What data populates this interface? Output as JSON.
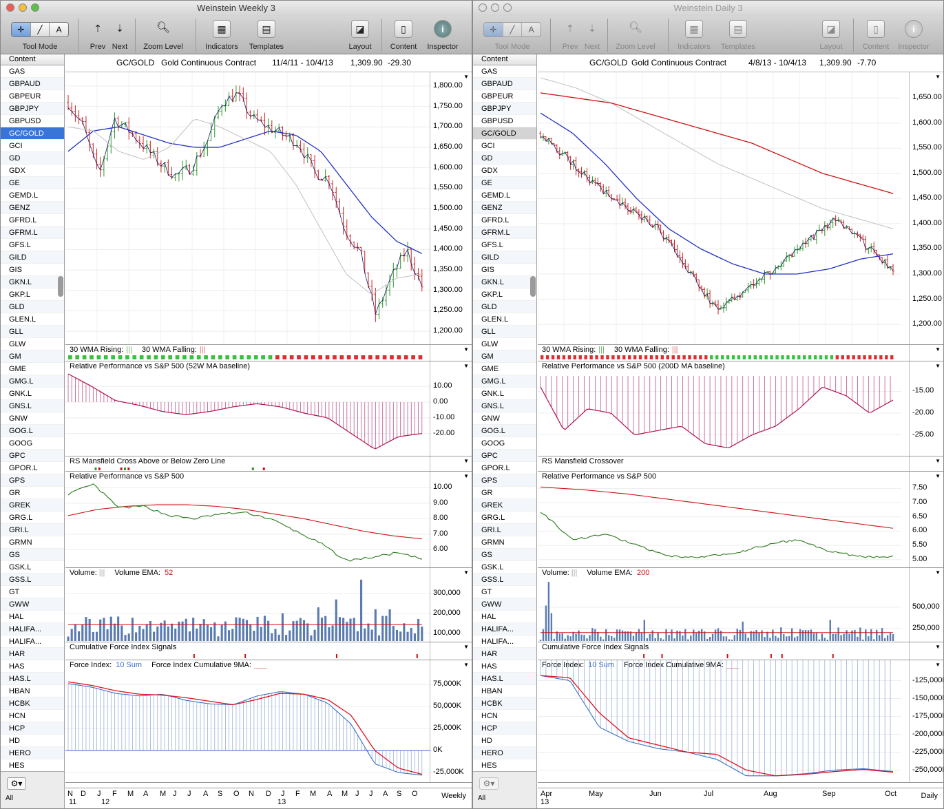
{
  "left": {
    "title": "Weinstein Weekly 3",
    "toolbar": {
      "tool_mode": "Tool Mode",
      "prev": "Prev",
      "next": "Next",
      "zoom": "Zoom Level",
      "indicators": "Indicators",
      "templates": "Templates",
      "layout": "Layout",
      "content": "Content",
      "inspector": "Inspector"
    },
    "sidebar": {
      "header": "Content",
      "selected": "GC/GOLD",
      "items": [
        "GAS",
        "GBPAUD",
        "GBPEUR",
        "GBPJPY",
        "GBPUSD",
        "GC/GOLD",
        "GCI",
        "GD",
        "GDX",
        "GE",
        "GEMD.L",
        "GENZ",
        "GFRD.L",
        "GFRM.L",
        "GFS.L",
        "GILD",
        "GIS",
        "GKN.L",
        "GKP.L",
        "GLD",
        "GLEN.L",
        "GLL",
        "GLW",
        "GM",
        "GME",
        "GMG.L",
        "GNK.L",
        "GNS.L",
        "GNW",
        "GOG.L",
        "GOOG",
        "GPC",
        "GPOR.L",
        "GPS",
        "GR",
        "GREK",
        "GRG.L",
        "GRI.L",
        "GRMN",
        "GS",
        "GSK.L",
        "GSS.L",
        "GT",
        "GWW",
        "HAL",
        "HALIFA...",
        "HALIFA...",
        "HAR",
        "HAS",
        "HAS.L",
        "HBAN",
        "HCBK",
        "HCN",
        "HCP",
        "HD",
        "HERO",
        "HES"
      ],
      "all": "All"
    },
    "header": {
      "symbol": "GC/GOLD",
      "name": "Gold Continuous Contract",
      "range": "11/4/11 - 10/4/13",
      "last": "1,309.90",
      "change": "-29.30"
    },
    "panels": {
      "wma": {
        "rising": "30 WMA Rising:",
        "falling": "30 WMA Falling:"
      },
      "relperf_ma": {
        "title": "Relative Performance vs S&P 500 (52W MA baseline)"
      },
      "rs_cross": {
        "title": "RS Mansfield Cross Above or Below Zero Line"
      },
      "relperf": {
        "title": "Relative Performance vs S&P 500"
      },
      "volume": {
        "title": "Volume:",
        "ema": "Volume EMA:",
        "ema_value": "52"
      },
      "cfi": {
        "title": "Cumulative Force Index Signals"
      },
      "force": {
        "title": "Force Index:",
        "sum": "10 Sum",
        "cum": "Force Index Cumulative 9MA:"
      }
    },
    "y_price": [
      "1,800.00",
      "1,750.00",
      "1,700.00",
      "1,650.00",
      "1,600.00",
      "1,550.00",
      "1,500.00",
      "1,450.00",
      "1,400.00",
      "1,350.00",
      "1,300.00",
      "1,250.00",
      "1,200.00"
    ],
    "y_relma": [
      "10.00",
      "0.00",
      "-10.00",
      "-20.00"
    ],
    "y_rel": [
      "10.00",
      "9.00",
      "8.00",
      "7.00",
      "6.00"
    ],
    "y_vol": [
      "300,000",
      "200,000",
      "100,000"
    ],
    "y_force": [
      "75,000K",
      "50,000K",
      "25,000K",
      "0K",
      "-25,000K"
    ],
    "x_months": [
      "N",
      "D",
      "J",
      "F",
      "M",
      "A",
      "M",
      "J",
      "J",
      "A",
      "S",
      "O",
      "N",
      "D",
      "J",
      "F",
      "M",
      "A",
      "M",
      "J",
      "J",
      "A",
      "S",
      "O"
    ],
    "x_years": [
      "11",
      "12",
      "13"
    ],
    "period": "Weekly"
  },
  "right": {
    "title": "Weinstein Daily 3",
    "toolbar": {
      "tool_mode": "Tool Mode",
      "prev": "Prev",
      "next": "Next",
      "zoom": "Zoom Level",
      "indicators": "Indicators",
      "templates": "Templates",
      "layout": "Layout",
      "content": "Content",
      "inspector": "Inspector"
    },
    "sidebar": {
      "header": "Content",
      "selected": "GC/GOLD",
      "items": [
        "GAS",
        "GBPAUD",
        "GBPEUR",
        "GBPJPY",
        "GBPUSD",
        "GC/GOLD",
        "GCI",
        "GD",
        "GDX",
        "GE",
        "GEMD.L",
        "GENZ",
        "GFRD.L",
        "GFRM.L",
        "GFS.L",
        "GILD",
        "GIS",
        "GKN.L",
        "GKP.L",
        "GLD",
        "GLEN.L",
        "GLL",
        "GLW",
        "GM",
        "GME",
        "GMG.L",
        "GNK.L",
        "GNS.L",
        "GNW",
        "GOG.L",
        "GOOG",
        "GPC",
        "GPOR.L",
        "GPS",
        "GR",
        "GREK",
        "GRG.L",
        "GRI.L",
        "GRMN",
        "GS",
        "GSK.L",
        "GSS.L",
        "GT",
        "GWW",
        "HAL",
        "HALIFA...",
        "HALIFA...",
        "HAR",
        "HAS",
        "HAS.L",
        "HBAN",
        "HCBK",
        "HCN",
        "HCP",
        "HD",
        "HERO",
        "HES"
      ],
      "all": "All"
    },
    "header": {
      "symbol": "GC/GOLD",
      "name": "Gold Continuous Contract",
      "range": "4/8/13 - 10/4/13",
      "last": "1,309.90",
      "change": "-7.70"
    },
    "panels": {
      "wma": {
        "rising": "30 WMA Rising:",
        "falling": "30 WMA Falling:"
      },
      "relperf_ma": {
        "title": "Relative Performance vs S&P 500 (200D MA baseline)"
      },
      "rs_cross": {
        "title": "RS Mansfield Crossover"
      },
      "relperf": {
        "title": "Relative Performance vs S&P 500"
      },
      "volume": {
        "title": "Volume:",
        "ema": "Volume EMA:",
        "ema_value": "200"
      },
      "cfi": {
        "title": "Cumulative Force Index Signals"
      },
      "force": {
        "title": "Force Index:",
        "sum": "10 Sum",
        "cum": "Force Index Cumulative 9MA:"
      }
    },
    "y_price": [
      "1,650.00",
      "1,600.00",
      "1,550.00",
      "1,500.00",
      "1,450.00",
      "1,400.00",
      "1,350.00",
      "1,300.00",
      "1,250.00",
      "1,200.00"
    ],
    "y_relma": [
      "-15.00",
      "-20.00",
      "-25.00"
    ],
    "y_rel": [
      "7.50",
      "7.00",
      "6.50",
      "6.00",
      "5.50",
      "5.00"
    ],
    "y_vol": [
      "500,000",
      "250,000"
    ],
    "y_force": [
      "-125,000K",
      "-150,000K",
      "-175,000K",
      "-200,000K",
      "-225,000K",
      "-250,000K"
    ],
    "x_months": [
      "Apr",
      "May",
      "Jun",
      "Jul",
      "Aug",
      "Sep",
      "Oct"
    ],
    "x_years": [
      "13"
    ],
    "period": "Daily"
  },
  "chart_data": [
    {
      "type": "line",
      "title": "GC/GOLD Gold Continuous Contract (Weekly)",
      "x": [
        "N",
        "D",
        "J",
        "F",
        "M",
        "A",
        "M",
        "J",
        "J",
        "A",
        "S",
        "O",
        "N",
        "D",
        "J",
        "F",
        "M",
        "A",
        "M",
        "J",
        "J",
        "A",
        "S",
        "O"
      ],
      "series": [
        {
          "name": "GC/GOLD",
          "values": [
            1760,
            1700,
            1580,
            1720,
            1690,
            1650,
            1610,
            1580,
            1600,
            1660,
            1760,
            1780,
            1720,
            1700,
            1680,
            1660,
            1590,
            1570,
            1450,
            1390,
            1240,
            1330,
            1400,
            1310
          ]
        }
      ],
      "ylim": [
        1180,
        1820
      ]
    },
    {
      "type": "line",
      "title": "GC/GOLD Gold Continuous Contract (Daily)",
      "x": [
        "Apr",
        "May",
        "Jun",
        "Jul",
        "Aug",
        "Sep",
        "Oct"
      ],
      "series": [
        {
          "name": "GC/GOLD",
          "values": [
            1580,
            1470,
            1390,
            1230,
            1310,
            1410,
            1310
          ]
        }
      ],
      "ylim": [
        1170,
        1690
      ]
    }
  ]
}
